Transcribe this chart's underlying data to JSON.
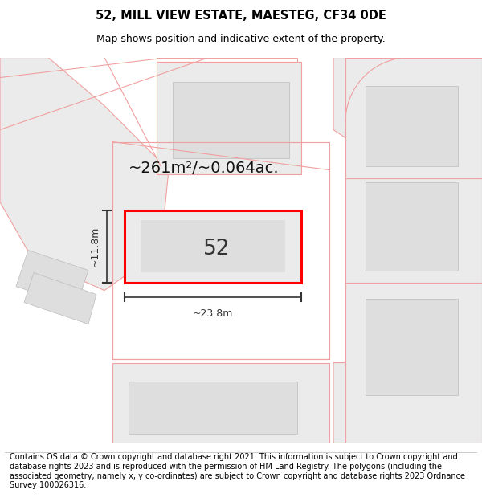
{
  "title": "52, MILL VIEW ESTATE, MAESTEG, CF34 0DE",
  "subtitle": "Map shows position and indicative extent of the property.",
  "footer": "Contains OS data © Crown copyright and database right 2021. This information is subject to Crown copyright and database rights 2023 and is reproduced with the permission of HM Land Registry. The polygons (including the associated geometry, namely x, y co-ordinates) are subject to Crown copyright and database rights 2023 Ordnance Survey 100026316.",
  "background_color": "#ffffff",
  "plot_color": "#ebebeb",
  "building_color": "#dedede",
  "boundary_color": "#f0a0a0",
  "highlight_color": "#ff0000",
  "dark_line": "#333333",
  "area_text": "~261m²/~0.064ac.",
  "number_text": "52",
  "width_text": "~23.8m",
  "height_text": "~11.8m",
  "title_fontsize": 10.5,
  "subtitle_fontsize": 9,
  "footer_fontsize": 7,
  "area_fontsize": 14
}
